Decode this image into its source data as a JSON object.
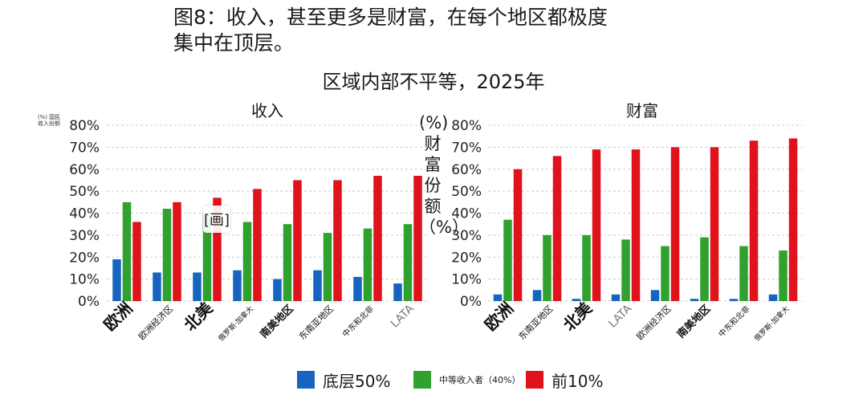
{
  "headline_line1": "图8：收入，甚至更多是财富，在每个地区都极度",
  "headline_line2": "集中在顶层。",
  "subtitle": "区域内部不平等，2025年",
  "left_ylabel": "(%) 国民收入份额",
  "right_ylabel": "(%)财富份额（%）",
  "overlay_icon": "[画]",
  "colors": {
    "bottom50": "#1565c0",
    "middle40": "#2ea12e",
    "top10": "#e0121b",
    "grid": "#cccccc"
  },
  "legend": [
    {
      "key": "bottom50",
      "label": "底层50%",
      "size": 20
    },
    {
      "key": "middle40",
      "label": "中等收入者（40%）",
      "size": 11
    },
    {
      "key": "top10",
      "label": "前10%",
      "size": 20
    }
  ],
  "chart_data": [
    {
      "type": "bar",
      "title": "收入",
      "ylabel": "(%) 国民收入份额",
      "ylim": [
        0,
        80
      ],
      "yticks": [
        "0%",
        "10%",
        "20%",
        "30%",
        "40%",
        "50%",
        "60%",
        "70%",
        "80%"
      ],
      "grid": true,
      "categories": [
        "欧洲",
        "欧洲经济区",
        "北美",
        "俄罗斯·加拿大",
        "南美地区",
        "东南亚地区",
        "中东和北非",
        "LATA"
      ],
      "category_font_sizes": [
        20,
        11,
        20,
        9,
        13,
        11,
        10,
        14
      ],
      "series": [
        {
          "name": "底层50%",
          "key": "bottom50",
          "values": [
            19,
            13,
            13,
            14,
            10,
            14,
            11,
            8
          ]
        },
        {
          "name": "中等收入者（40%）",
          "key": "middle40",
          "values": [
            45,
            42,
            40,
            36,
            35,
            31,
            33,
            35
          ]
        },
        {
          "name": "前10%",
          "key": "top10",
          "values": [
            36,
            45,
            47,
            51,
            55,
            55,
            57,
            57
          ]
        }
      ]
    },
    {
      "type": "bar",
      "title": "财富",
      "ylabel": "(%)财富份额（%）",
      "ylim": [
        0,
        80
      ],
      "yticks": [
        "0%",
        "10%",
        "20%",
        "30%",
        "40%",
        "50%",
        "60%",
        "70%",
        "80%"
      ],
      "grid": true,
      "categories": [
        "欧洲",
        "东南亚地区",
        "北美",
        "LATA",
        "欧洲经济区",
        "南美地区",
        "中东和北非",
        "俄罗斯·加拿大"
      ],
      "category_font_sizes": [
        20,
        11,
        20,
        14,
        11,
        13,
        10,
        9
      ],
      "series": [
        {
          "name": "底层50%",
          "key": "bottom50",
          "values": [
            3,
            5,
            1,
            3,
            5,
            1,
            1,
            3
          ]
        },
        {
          "name": "中等收入者（40%）",
          "key": "middle40",
          "values": [
            37,
            30,
            30,
            28,
            25,
            29,
            25,
            23
          ]
        },
        {
          "name": "前10%",
          "key": "top10",
          "values": [
            60,
            66,
            69,
            69,
            70,
            70,
            73,
            74
          ]
        }
      ]
    }
  ]
}
